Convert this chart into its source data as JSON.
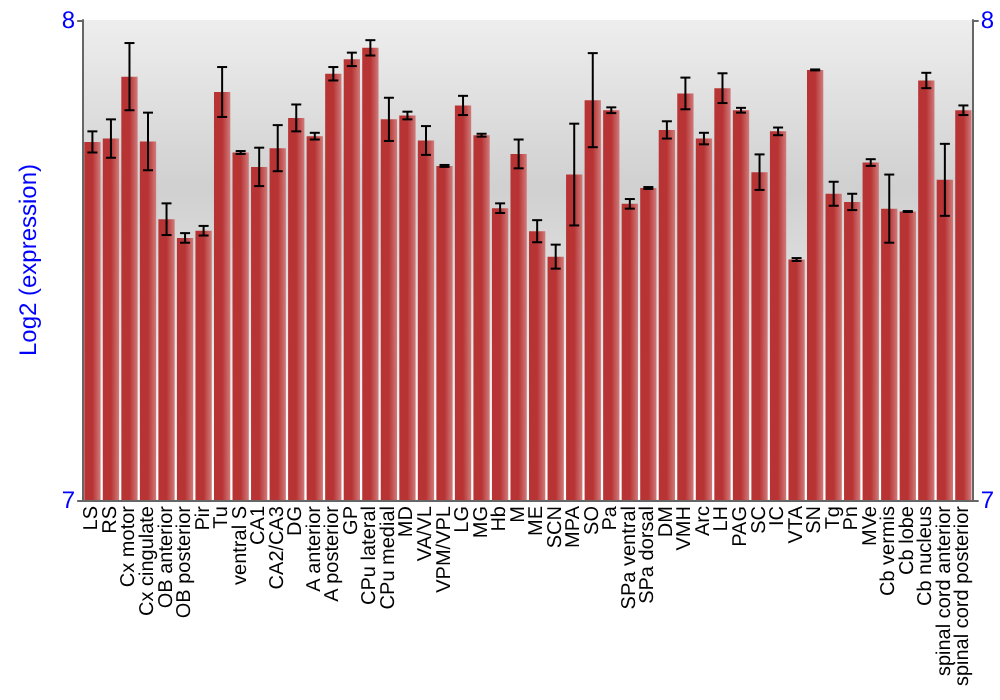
{
  "chart_data": {
    "type": "bar",
    "ylabel": "Log2 (expression)",
    "categories": [
      "LS",
      "RS",
      "Cx motor",
      "Cx cingulate",
      "OB anterior",
      "OB posterior",
      "Pir",
      "Tu",
      "ventral S",
      "CA1",
      "CA2/CA3",
      "DG",
      "A anterior",
      "A posterior",
      "GP",
      "CPu lateral",
      "CPu medial",
      "MD",
      "VA/VL",
      "VPM/VPL",
      "LG",
      "MG",
      "Hb",
      "M",
      "ME",
      "SCN",
      "MPA",
      "SO",
      "Pa",
      "SPa ventral",
      "SPa dorsal",
      "DM",
      "VMH",
      "Arc",
      "LH",
      "PAG",
      "SC",
      "IC",
      "VTA",
      "SN",
      "Tg",
      "Pn",
      "MVe",
      "Cb vermis",
      "Cb lobe",
      "Cb nucleus",
      "spinal cord anterior",
      "spinal cord posterior"
    ],
    "values": [
      7.746,
      7.753,
      7.882,
      7.747,
      7.585,
      7.546,
      7.561,
      7.85,
      7.724,
      7.694,
      7.733,
      7.796,
      7.758,
      7.888,
      7.918,
      7.942,
      7.793,
      7.801,
      7.749,
      7.696,
      7.822,
      7.76,
      7.608,
      7.721,
      7.56,
      7.507,
      7.678,
      7.833,
      7.812,
      7.617,
      7.65,
      7.771,
      7.847,
      7.753,
      7.858,
      7.812,
      7.683,
      7.768,
      7.501,
      7.896,
      7.638,
      7.621,
      7.703,
      7.607,
      7.601,
      7.874,
      7.667,
      7.812
    ],
    "errors": [
      0.022,
      0.04,
      0.07,
      0.06,
      0.033,
      0.01,
      0.01,
      0.052,
      0.003,
      0.04,
      0.048,
      0.028,
      0.007,
      0.014,
      0.014,
      0.016,
      0.045,
      0.008,
      0.03,
      0.002,
      0.02,
      0.003,
      0.01,
      0.03,
      0.023,
      0.025,
      0.106,
      0.098,
      0.006,
      0.01,
      0.002,
      0.018,
      0.033,
      0.012,
      0.031,
      0.005,
      0.037,
      0.008,
      0.003,
      0.001,
      0.025,
      0.017,
      0.007,
      0.071,
      0.001,
      0.016,
      0.075,
      0.01
    ],
    "color": "#b83434",
    "ylim": [
      7,
      8
    ],
    "yticks": [
      7,
      8
    ],
    "y2lim": [
      7,
      8
    ],
    "y2ticks": [
      7,
      8
    ],
    "grid": false
  }
}
